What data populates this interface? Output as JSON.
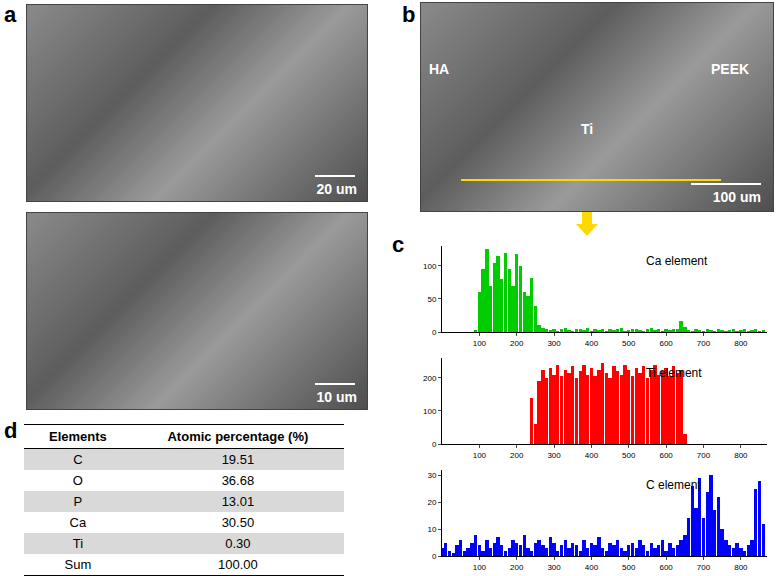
{
  "panels": [
    "a",
    "b",
    "c",
    "d"
  ],
  "images": {
    "a_top": {
      "scale_bar": "20 um"
    },
    "a_bottom": {
      "scale_bar": "10 um"
    },
    "b": {
      "labels": [
        "HA",
        "Ti",
        "PEEK"
      ],
      "scale_bar": "100 um"
    }
  },
  "chart_data": [
    {
      "type": "bar",
      "title": "Ca element",
      "color": "#00cc00",
      "x": [
        0,
        10,
        20,
        30,
        40,
        50,
        60,
        70,
        80,
        90,
        100,
        110,
        120,
        130,
        140,
        150,
        160,
        170,
        180,
        190,
        200,
        210,
        220,
        230,
        240,
        250,
        260,
        270,
        280,
        290,
        300,
        310,
        320,
        330,
        340,
        350,
        360,
        370,
        380,
        390,
        400,
        410,
        420,
        430,
        440,
        450,
        460,
        470,
        480,
        490,
        500,
        510,
        520,
        530,
        540,
        550,
        560,
        570,
        580,
        590,
        600,
        610,
        620,
        630,
        640,
        650,
        660,
        670,
        680,
        690,
        700,
        710,
        720,
        730,
        740,
        750,
        760,
        770,
        780,
        790,
        800,
        810,
        820,
        830,
        840,
        850,
        860
      ],
      "values": [
        0,
        0,
        0,
        0,
        0,
        0,
        0,
        0,
        0,
        3,
        60,
        95,
        125,
        70,
        105,
        115,
        80,
        120,
        95,
        70,
        118,
        100,
        60,
        55,
        82,
        40,
        10,
        6,
        4,
        3,
        5,
        2,
        4,
        6,
        3,
        2,
        5,
        4,
        3,
        6,
        2,
        4,
        3,
        5,
        2,
        4,
        3,
        5,
        6,
        2,
        3,
        4,
        5,
        3,
        2,
        4,
        6,
        3,
        5,
        2,
        4,
        3,
        5,
        4,
        16,
        8,
        3,
        2,
        4,
        3,
        2,
        5,
        3,
        2,
        4,
        3,
        2,
        3,
        4,
        2,
        3,
        5,
        2,
        3,
        4,
        2,
        3
      ],
      "xlim": [
        0,
        870
      ],
      "xticks": [
        100,
        200,
        300,
        400,
        500,
        600,
        700,
        800
      ],
      "ylim": [
        0,
        130
      ],
      "yticks": [
        0,
        50,
        100
      ],
      "grid": false
    },
    {
      "type": "bar",
      "title": "Ti element",
      "color": "#ff0000",
      "x": [
        0,
        10,
        20,
        30,
        40,
        50,
        60,
        70,
        80,
        90,
        100,
        110,
        120,
        130,
        140,
        150,
        160,
        170,
        180,
        190,
        200,
        210,
        220,
        230,
        240,
        250,
        260,
        270,
        280,
        290,
        300,
        310,
        320,
        330,
        340,
        350,
        360,
        370,
        380,
        390,
        400,
        410,
        420,
        430,
        440,
        450,
        460,
        470,
        480,
        490,
        500,
        510,
        520,
        530,
        540,
        550,
        560,
        570,
        580,
        590,
        600,
        610,
        620,
        630,
        640,
        650,
        660,
        670,
        680,
        690,
        700,
        710,
        720,
        730,
        740,
        750,
        760,
        770,
        780,
        790,
        800,
        810,
        820,
        830,
        840,
        850,
        860
      ],
      "values": [
        0,
        0,
        0,
        0,
        0,
        0,
        0,
        0,
        0,
        0,
        0,
        0,
        0,
        0,
        0,
        0,
        0,
        0,
        0,
        0,
        0,
        0,
        0,
        0,
        140,
        60,
        190,
        225,
        200,
        230,
        210,
        240,
        205,
        225,
        215,
        235,
        200,
        220,
        240,
        210,
        230,
        205,
        225,
        245,
        215,
        200,
        235,
        220,
        210,
        240,
        225,
        205,
        230,
        215,
        235,
        200,
        225,
        240,
        210,
        220,
        230,
        205,
        235,
        215,
        225,
        30,
        0,
        0,
        0,
        0,
        0,
        0,
        0,
        0,
        0,
        0,
        0,
        0,
        0,
        0,
        0,
        0,
        0,
        0,
        0,
        0,
        0
      ],
      "xlim": [
        0,
        870
      ],
      "xticks": [
        100,
        200,
        300,
        400,
        500,
        600,
        700,
        800
      ],
      "ylim": [
        0,
        260
      ],
      "yticks": [
        0,
        100,
        200
      ],
      "grid": false
    },
    {
      "type": "bar",
      "title": "C element",
      "color": "#0000ff",
      "x": [
        0,
        10,
        20,
        30,
        40,
        50,
        60,
        70,
        80,
        90,
        100,
        110,
        120,
        130,
        140,
        150,
        160,
        170,
        180,
        190,
        200,
        210,
        220,
        230,
        240,
        250,
        260,
        270,
        280,
        290,
        300,
        310,
        320,
        330,
        340,
        350,
        360,
        370,
        380,
        390,
        400,
        410,
        420,
        430,
        440,
        450,
        460,
        470,
        480,
        490,
        500,
        510,
        520,
        530,
        540,
        550,
        560,
        570,
        580,
        590,
        600,
        610,
        620,
        630,
        640,
        650,
        660,
        670,
        680,
        690,
        700,
        710,
        720,
        730,
        740,
        750,
        760,
        770,
        780,
        790,
        800,
        810,
        820,
        830,
        840,
        850,
        860
      ],
      "values": [
        3,
        5,
        2,
        1,
        4,
        6,
        2,
        3,
        5,
        8,
        4,
        2,
        6,
        3,
        5,
        7,
        4,
        2,
        3,
        6,
        5,
        4,
        8,
        3,
        2,
        5,
        6,
        4,
        3,
        7,
        5,
        2,
        4,
        6,
        3,
        5,
        4,
        2,
        6,
        3,
        5,
        4,
        7,
        3,
        2,
        5,
        4,
        6,
        3,
        2,
        4,
        5,
        3,
        6,
        4,
        2,
        5,
        3,
        4,
        6,
        2,
        5,
        3,
        4,
        6,
        8,
        14,
        26,
        18,
        29,
        14,
        24,
        30,
        17,
        22,
        10,
        6,
        4,
        3,
        5,
        3,
        2,
        4,
        6,
        25,
        28,
        12
      ],
      "xlim": [
        0,
        870
      ],
      "xticks": [
        100,
        200,
        300,
        400,
        500,
        600,
        700,
        800
      ],
      "ylim": [
        0,
        32
      ],
      "yticks": [
        0,
        10,
        20,
        30
      ],
      "grid": false
    }
  ],
  "table": {
    "header": [
      "Elements",
      "Atomic percentage (%)"
    ],
    "rows": [
      [
        "C",
        "19.51"
      ],
      [
        "O",
        "36.68"
      ],
      [
        "P",
        "13.01"
      ],
      [
        "Ca",
        "30.50"
      ],
      [
        "Ti",
        "0.30"
      ],
      [
        "Sum",
        "100.00"
      ]
    ]
  }
}
